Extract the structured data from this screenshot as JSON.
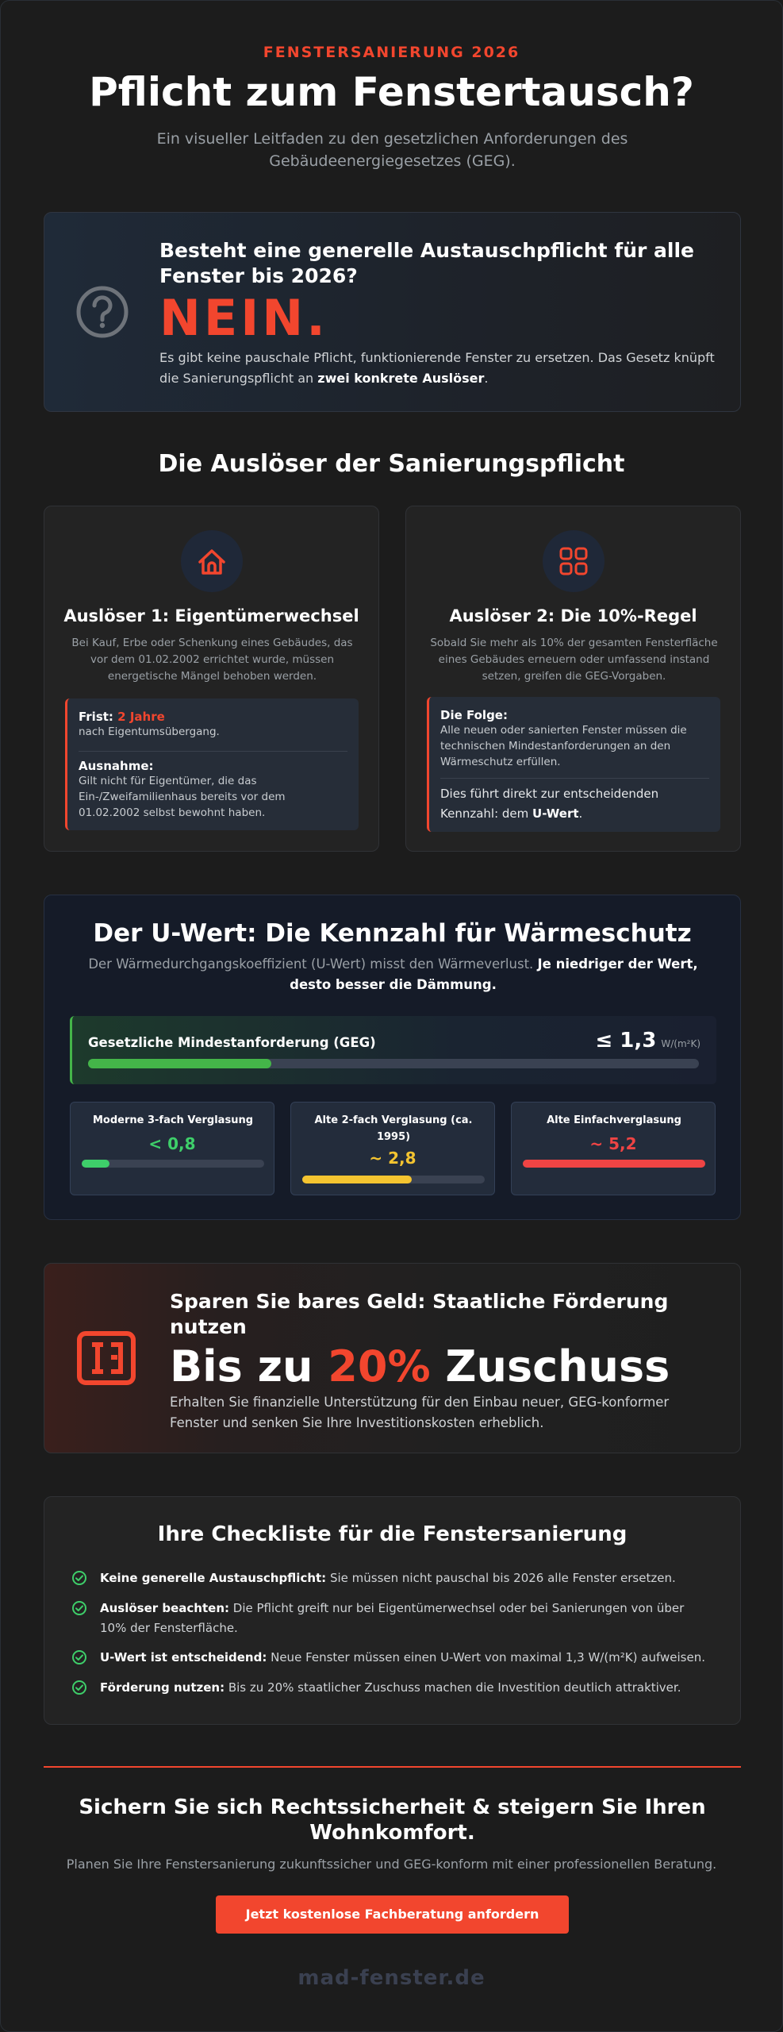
{
  "hero": {
    "eyebrow": "FENSTERSANIERUNG 2026",
    "title": "Pflicht zum Fenstertausch?",
    "subtitle": "Ein visueller Leitfaden zu den gesetzlichen Anforderungen des Gebäudeenergiegesetzes (GEG)."
  },
  "answer": {
    "icon": "question-circle-icon",
    "question": "Besteht eine generelle Austauschpflicht für alle Fenster bis 2026?",
    "verdict": "NEIN.",
    "text_before": "Es gibt keine pauschale Pflicht, funktionierende Fenster zu ersetzen. Das Gesetz knüpft die Sanierungspflicht an ",
    "text_bold": "zwei konkrete Auslöser",
    "text_after": "."
  },
  "triggers": {
    "section_title": "Die Auslöser der Sanierungspflicht",
    "items": [
      {
        "icon": "house-icon",
        "title": "Auslöser 1: Eigentümerwechsel",
        "description": "Bei Kauf, Erbe oder Schenkung eines Gebäudes, das vor dem 01.02.2002 errichtet wurde, müssen energetische Mängel behoben werden.",
        "box": {
          "label1": "Frist:",
          "label1_value": "2 Jahre",
          "text1": "nach Eigentumsübergang.",
          "label2": "Ausnahme:",
          "text2": "Gilt nicht für Eigentümer, die das Ein-/Zweifamilienhaus bereits vor dem 01.02.2002 selbst bewohnt haben."
        }
      },
      {
        "icon": "grid-window-icon",
        "title": "Auslöser 2: Die 10%-Regel",
        "description": "Sobald Sie mehr als 10% der gesamten Fensterfläche eines Gebäudes erneuern oder umfassend instand setzen, greifen die GEG-Vorgaben.",
        "box": {
          "label1": "Die Folge:",
          "text1": "Alle neuen oder sanierten Fenster müssen die technischen Mindestanforderungen an den Wärmeschutz erfüllen.",
          "text2_before": "Dies führt direkt zur entscheidenden Kennzahl: dem ",
          "text2_bold": "U-Wert",
          "text2_after": "."
        }
      }
    ]
  },
  "uwert": {
    "title": "Der U-Wert: Die Kennzahl für Wärmeschutz",
    "subtitle_before": "Der Wärmedurchgangskoeffizient (U-Wert) misst den Wärmeverlust. ",
    "subtitle_bold": "Je niedriger der Wert, desto besser die Dämmung.",
    "geg": {
      "label": "Gesetzliche Mindestanforderung (GEG)",
      "value": "≤ 1,3",
      "unit": "W/(m²K)",
      "fill": 0.3,
      "color": "#44b549"
    },
    "cards": [
      {
        "label": "Moderne 3-fach Verglasung",
        "value": "< 0,8",
        "fill": 0.15,
        "color": "#3ecf6a"
      },
      {
        "label": "Alte 2-fach Verglasung (ca. 1995)",
        "value": "~ 2,8",
        "fill": 0.6,
        "color": "#f4c430"
      },
      {
        "label": "Alte Einfachverglasung",
        "value": "~ 5,2",
        "fill": 1.0,
        "color": "#ef4444"
      }
    ]
  },
  "funding": {
    "icon": "subsidy-icon",
    "title": "Sparen Sie bares Geld: Staatliche Förderung nutzen",
    "big_before": "Bis zu ",
    "big_accent": "20%",
    "big_after": " Zuschuss",
    "text": "Erhalten Sie finanzielle Unterstützung für den Einbau neuer, GEG-konformer Fenster und senken Sie Ihre Investitionskosten erheblich."
  },
  "checklist": {
    "title": "Ihre Checkliste für die Fenstersanierung",
    "items": [
      {
        "bold": "Keine generelle Austauschpflicht:",
        "text": " Sie müssen nicht pauschal bis 2026 alle Fenster ersetzen."
      },
      {
        "bold": "Auslöser beachten:",
        "text": " Die Pflicht greift nur bei Eigentümerwechsel oder bei Sanierungen von über 10% der Fensterfläche."
      },
      {
        "bold": "U-Wert ist entscheidend:",
        "text": " Neue Fenster müssen einen U-Wert von maximal 1,3 W/(m²K) aufweisen."
      },
      {
        "bold": "Förderung nutzen:",
        "text": " Bis zu 20% staatlicher Zuschuss machen die Investition deutlich attraktiver."
      }
    ]
  },
  "cta": {
    "title": "Sichern Sie sich Rechtssicherheit & steigern Sie Ihren Wohnkomfort.",
    "subtitle": "Planen Sie Ihre Fenstersanierung zukunftssicher und GEG-konform mit einer professionellen Beratung.",
    "button": "Jetzt kostenlose Fachberatung anfordern",
    "brand": "mad-fenster.de"
  },
  "colors": {
    "accent": "#f2462e",
    "background": "#1c1c1c",
    "check_green": "#3ecf6a"
  }
}
